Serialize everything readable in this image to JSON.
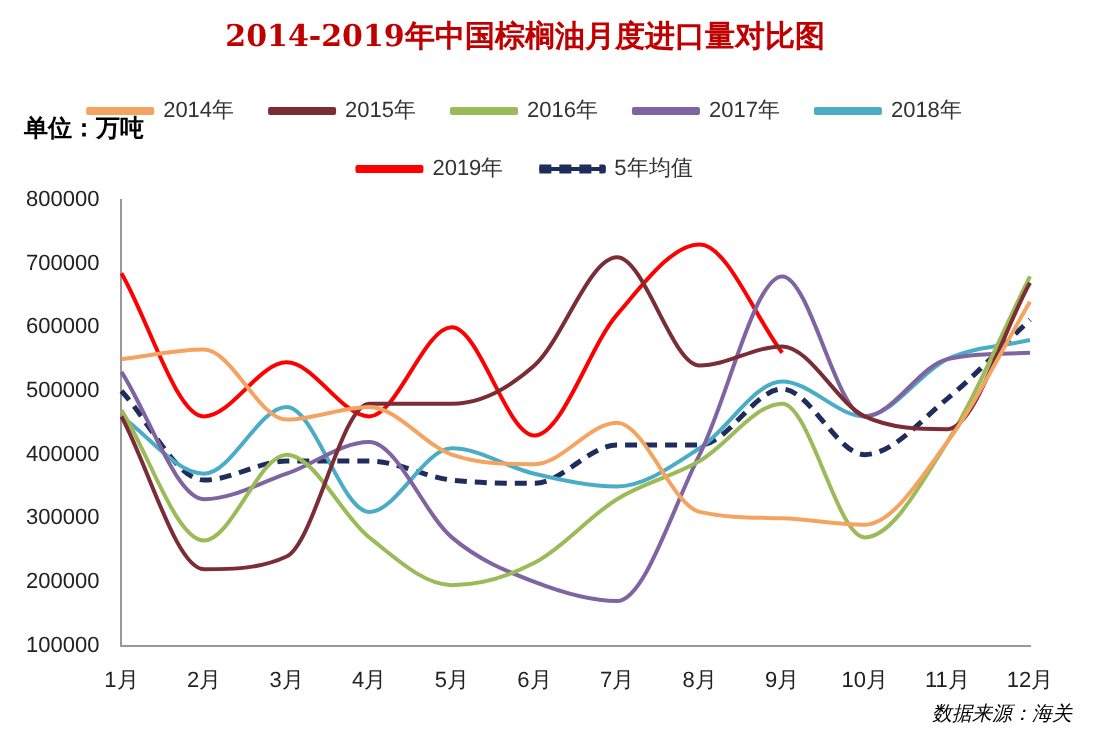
{
  "chart_data": {
    "type": "line",
    "title": "2014-2019年中国棕榈油月度进口量对比图",
    "categories": [
      "1月",
      "2月",
      "3月",
      "4月",
      "5月",
      "6月",
      "7月",
      "8月",
      "9月",
      "10月",
      "11月",
      "12月"
    ],
    "series": [
      {
        "name": "2014年",
        "color": "#f4a460",
        "values": [
          550000,
          565000,
          455000,
          475000,
          400000,
          385000,
          450000,
          310000,
          300000,
          290000,
          420000,
          640000
        ]
      },
      {
        "name": "2015年",
        "color": "#7b2d35",
        "values": [
          460000,
          220000,
          240000,
          480000,
          480000,
          540000,
          710000,
          540000,
          570000,
          460000,
          440000,
          670000
        ]
      },
      {
        "name": "2016年",
        "color": "#9bbb59",
        "values": [
          470000,
          265000,
          400000,
          270000,
          195000,
          230000,
          330000,
          390000,
          480000,
          270000,
          420000,
          680000
        ]
      },
      {
        "name": "2017年",
        "color": "#8064a2",
        "values": [
          530000,
          330000,
          370000,
          420000,
          270000,
          200000,
          170000,
          400000,
          680000,
          460000,
          550000,
          560000
        ]
      },
      {
        "name": "2018年",
        "color": "#4bacc6",
        "values": [
          460000,
          370000,
          475000,
          310000,
          410000,
          370000,
          350000,
          410000,
          515000,
          460000,
          550000,
          580000
        ]
      },
      {
        "name": "2019年",
        "color": "#ff0000",
        "values": [
          685000,
          460000,
          545000,
          460000,
          600000,
          430000,
          620000,
          730000,
          560000,
          null,
          null,
          null
        ]
      },
      {
        "name": "5年均值",
        "color": "#1f2d5c",
        "line_style": "dashed",
        "values": [
          500000,
          360000,
          390000,
          390000,
          360000,
          355000,
          415000,
          415000,
          503000,
          400000,
          488000,
          612000
        ]
      }
    ],
    "ylim": [
      100000,
      800000
    ],
    "yticks": [
      100000,
      200000,
      300000,
      400000,
      500000,
      600000,
      700000,
      800000
    ],
    "grid": false,
    "legend": "top",
    "marker": "none",
    "annotations": [
      "单位：万吨",
      "数据来源：海关"
    ]
  }
}
